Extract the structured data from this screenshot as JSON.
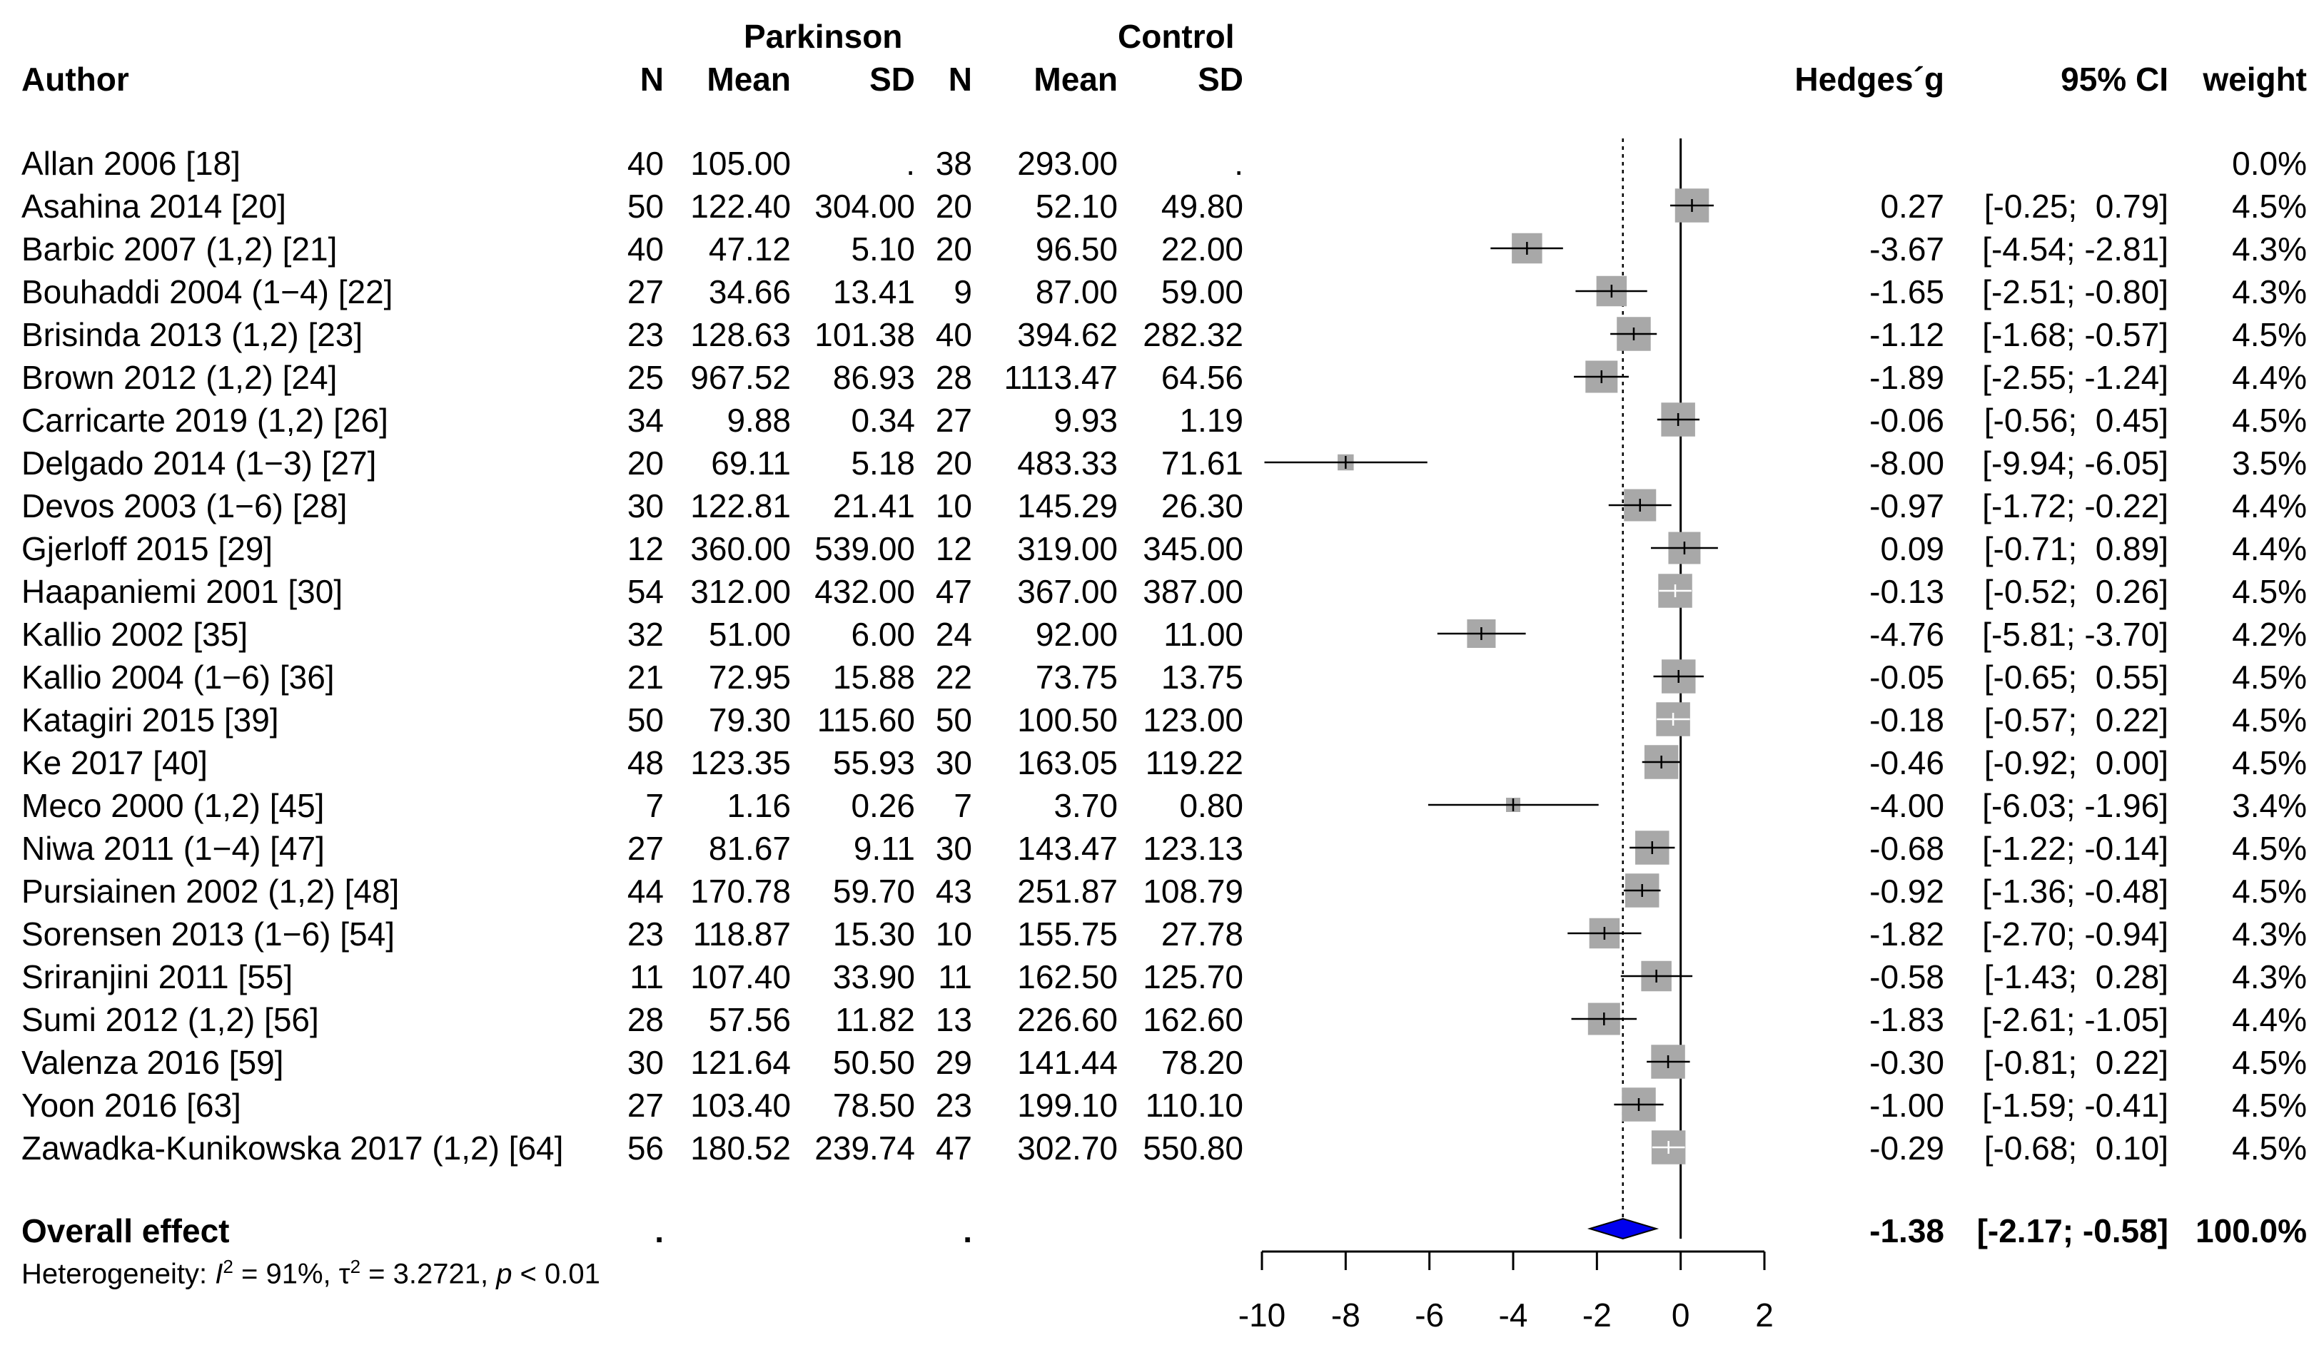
{
  "header": {
    "group1": "Parkinson",
    "group2": "Control",
    "author": "Author",
    "n1": "N",
    "mean1": "Mean",
    "sd1": "SD",
    "n2": "N",
    "mean2": "Mean",
    "sd2": "SD",
    "effect": "Hedges´g",
    "ci": "95% CI",
    "weight": "weight"
  },
  "overall": {
    "label": "Overall effect",
    "n1": ".",
    "n2": ".",
    "g": "-1.38",
    "ci": "[-2.17; -0.58]",
    "weight": "100.0%",
    "heterogeneity_prefix": "Heterogeneity: ",
    "i2_symbol": "I",
    "sup2": "2",
    "i2_value": " = 91%, ",
    "tau_symbol": "τ",
    "tau_value": " = 3.2721, ",
    "p_symbol": "p",
    "p_value": " < 0.01"
  },
  "chart_data": {
    "type": "forest",
    "xlim": [
      -10,
      2
    ],
    "ticks": [
      -10,
      -8,
      -6,
      -4,
      -2,
      0,
      2
    ],
    "tick_labels": [
      "-10",
      "-8",
      "-6",
      "-4",
      "-2",
      "0",
      "2"
    ],
    "reference_line": 0,
    "overall_estimate": -1.38,
    "overall_ci": [
      -2.17,
      -0.58
    ],
    "colors": {
      "square": "#a8a8a8",
      "diamond": "#0000ee",
      "line": "#000000",
      "light_tick": "#ffffff"
    },
    "studies": [
      {
        "author": "Allan 2006 [18]",
        "n1": "40",
        "mean1": "105.00",
        "sd1": ".",
        "n2": "38",
        "mean2": "293.00",
        "sd2": ".",
        "g_text": "",
        "ci_text": "",
        "weight_text": "0.0%",
        "g": null,
        "lo": null,
        "hi": null,
        "w": 0.0
      },
      {
        "author": "Asahina 2014 [20]",
        "n1": "50",
        "mean1": "122.40",
        "sd1": "304.00",
        "n2": "20",
        "mean2": "52.10",
        "sd2": "49.80",
        "g_text": "0.27",
        "ci_text": "[-0.25;  0.79]",
        "weight_text": "4.5%",
        "g": 0.27,
        "lo": -0.25,
        "hi": 0.79,
        "w": 4.5
      },
      {
        "author": "Barbic 2007 (1,2) [21]",
        "n1": "40",
        "mean1": "47.12",
        "sd1": "5.10",
        "n2": "20",
        "mean2": "96.50",
        "sd2": "22.00",
        "g_text": "-3.67",
        "ci_text": "[-4.54; -2.81]",
        "weight_text": "4.3%",
        "g": -3.67,
        "lo": -4.54,
        "hi": -2.81,
        "w": 4.3
      },
      {
        "author": "Bouhaddi 2004 (1−4) [22]",
        "n1": "27",
        "mean1": "34.66",
        "sd1": "13.41",
        "n2": "9",
        "mean2": "87.00",
        "sd2": "59.00",
        "g_text": "-1.65",
        "ci_text": "[-2.51; -0.80]",
        "weight_text": "4.3%",
        "g": -1.65,
        "lo": -2.51,
        "hi": -0.8,
        "w": 4.3
      },
      {
        "author": "Brisinda 2013 (1,2) [23]",
        "n1": "23",
        "mean1": "128.63",
        "sd1": "101.38",
        "n2": "40",
        "mean2": "394.62",
        "sd2": "282.32",
        "g_text": "-1.12",
        "ci_text": "[-1.68; -0.57]",
        "weight_text": "4.5%",
        "g": -1.12,
        "lo": -1.68,
        "hi": -0.57,
        "w": 4.5
      },
      {
        "author": "Brown 2012 (1,2) [24]",
        "n1": "25",
        "mean1": "967.52",
        "sd1": "86.93",
        "n2": "28",
        "mean2": "1113.47",
        "sd2": "64.56",
        "g_text": "-1.89",
        "ci_text": "[-2.55; -1.24]",
        "weight_text": "4.4%",
        "g": -1.89,
        "lo": -2.55,
        "hi": -1.24,
        "w": 4.4
      },
      {
        "author": "Carricarte 2019 (1,2) [26]",
        "n1": "34",
        "mean1": "9.88",
        "sd1": "0.34",
        "n2": "27",
        "mean2": "9.93",
        "sd2": "1.19",
        "g_text": "-0.06",
        "ci_text": "[-0.56;  0.45]",
        "weight_text": "4.5%",
        "g": -0.06,
        "lo": -0.56,
        "hi": 0.45,
        "w": 4.5
      },
      {
        "author": "Delgado 2014 (1−3) [27]",
        "n1": "20",
        "mean1": "69.11",
        "sd1": "5.18",
        "n2": "20",
        "mean2": "483.33",
        "sd2": "71.61",
        "g_text": "-8.00",
        "ci_text": "[-9.94; -6.05]",
        "weight_text": "3.5%",
        "g": -8.0,
        "lo": -9.94,
        "hi": -6.05,
        "w": 3.5
      },
      {
        "author": "Devos 2003 (1−6) [28]",
        "n1": "30",
        "mean1": "122.81",
        "sd1": "21.41",
        "n2": "10",
        "mean2": "145.29",
        "sd2": "26.30",
        "g_text": "-0.97",
        "ci_text": "[-1.72; -0.22]",
        "weight_text": "4.4%",
        "g": -0.97,
        "lo": -1.72,
        "hi": -0.22,
        "w": 4.4
      },
      {
        "author": "Gjerloff 2015 [29]",
        "n1": "12",
        "mean1": "360.00",
        "sd1": "539.00",
        "n2": "12",
        "mean2": "319.00",
        "sd2": "345.00",
        "g_text": "0.09",
        "ci_text": "[-0.71;  0.89]",
        "weight_text": "4.4%",
        "g": 0.09,
        "lo": -0.71,
        "hi": 0.89,
        "w": 4.4
      },
      {
        "author": "Haapaniemi 2001 [30]",
        "n1": "54",
        "mean1": "312.00",
        "sd1": "432.00",
        "n2": "47",
        "mean2": "367.00",
        "sd2": "387.00",
        "g_text": "-0.13",
        "ci_text": "[-0.52;  0.26]",
        "weight_text": "4.5%",
        "g": -0.13,
        "lo": -0.52,
        "hi": 0.26,
        "w": 4.5
      },
      {
        "author": "Kallio 2002 [35]",
        "n1": "32",
        "mean1": "51.00",
        "sd1": "6.00",
        "n2": "24",
        "mean2": "92.00",
        "sd2": "11.00",
        "g_text": "-4.76",
        "ci_text": "[-5.81; -3.70]",
        "weight_text": "4.2%",
        "g": -4.76,
        "lo": -5.81,
        "hi": -3.7,
        "w": 4.2
      },
      {
        "author": "Kallio 2004 (1−6) [36]",
        "n1": "21",
        "mean1": "72.95",
        "sd1": "15.88",
        "n2": "22",
        "mean2": "73.75",
        "sd2": "13.75",
        "g_text": "-0.05",
        "ci_text": "[-0.65;  0.55]",
        "weight_text": "4.5%",
        "g": -0.05,
        "lo": -0.65,
        "hi": 0.55,
        "w": 4.5
      },
      {
        "author": "Katagiri 2015 [39]",
        "n1": "50",
        "mean1": "79.30",
        "sd1": "115.60",
        "n2": "50",
        "mean2": "100.50",
        "sd2": "123.00",
        "g_text": "-0.18",
        "ci_text": "[-0.57;  0.22]",
        "weight_text": "4.5%",
        "g": -0.18,
        "lo": -0.57,
        "hi": 0.22,
        "w": 4.5
      },
      {
        "author": "Ke 2017 [40]",
        "n1": "48",
        "mean1": "123.35",
        "sd1": "55.93",
        "n2": "30",
        "mean2": "163.05",
        "sd2": "119.22",
        "g_text": "-0.46",
        "ci_text": "[-0.92;  0.00]",
        "weight_text": "4.5%",
        "g": -0.46,
        "lo": -0.92,
        "hi": 0.0,
        "w": 4.5
      },
      {
        "author": "Meco 2000 (1,2) [45]",
        "n1": "7",
        "mean1": "1.16",
        "sd1": "0.26",
        "n2": "7",
        "mean2": "3.70",
        "sd2": "0.80",
        "g_text": "-4.00",
        "ci_text": "[-6.03; -1.96]",
        "weight_text": "3.4%",
        "g": -4.0,
        "lo": -6.03,
        "hi": -1.96,
        "w": 3.4
      },
      {
        "author": "Niwa 2011 (1−4) [47]",
        "n1": "27",
        "mean1": "81.67",
        "sd1": "9.11",
        "n2": "30",
        "mean2": "143.47",
        "sd2": "123.13",
        "g_text": "-0.68",
        "ci_text": "[-1.22; -0.14]",
        "weight_text": "4.5%",
        "g": -0.68,
        "lo": -1.22,
        "hi": -0.14,
        "w": 4.5
      },
      {
        "author": "Pursiainen 2002 (1,2) [48]",
        "n1": "44",
        "mean1": "170.78",
        "sd1": "59.70",
        "n2": "43",
        "mean2": "251.87",
        "sd2": "108.79",
        "g_text": "-0.92",
        "ci_text": "[-1.36; -0.48]",
        "weight_text": "4.5%",
        "g": -0.92,
        "lo": -1.36,
        "hi": -0.48,
        "w": 4.5
      },
      {
        "author": "Sorensen 2013 (1−6) [54]",
        "n1": "23",
        "mean1": "118.87",
        "sd1": "15.30",
        "n2": "10",
        "mean2": "155.75",
        "sd2": "27.78",
        "g_text": "-1.82",
        "ci_text": "[-2.70; -0.94]",
        "weight_text": "4.3%",
        "g": -1.82,
        "lo": -2.7,
        "hi": -0.94,
        "w": 4.3
      },
      {
        "author": "Sriranjini 2011 [55]",
        "n1": "11",
        "mean1": "107.40",
        "sd1": "33.90",
        "n2": "11",
        "mean2": "162.50",
        "sd2": "125.70",
        "g_text": "-0.58",
        "ci_text": "[-1.43;  0.28]",
        "weight_text": "4.3%",
        "g": -0.58,
        "lo": -1.43,
        "hi": 0.28,
        "w": 4.3
      },
      {
        "author": "Sumi 2012 (1,2) [56]",
        "n1": "28",
        "mean1": "57.56",
        "sd1": "11.82",
        "n2": "13",
        "mean2": "226.60",
        "sd2": "162.60",
        "g_text": "-1.83",
        "ci_text": "[-2.61; -1.05]",
        "weight_text": "4.4%",
        "g": -1.83,
        "lo": -2.61,
        "hi": -1.05,
        "w": 4.4
      },
      {
        "author": "Valenza 2016 [59]",
        "n1": "30",
        "mean1": "121.64",
        "sd1": "50.50",
        "n2": "29",
        "mean2": "141.44",
        "sd2": "78.20",
        "g_text": "-0.30",
        "ci_text": "[-0.81;  0.22]",
        "weight_text": "4.5%",
        "g": -0.3,
        "lo": -0.81,
        "hi": 0.22,
        "w": 4.5
      },
      {
        "author": "Yoon 2016 [63]",
        "n1": "27",
        "mean1": "103.40",
        "sd1": "78.50",
        "n2": "23",
        "mean2": "199.10",
        "sd2": "110.10",
        "g_text": "-1.00",
        "ci_text": "[-1.59; -0.41]",
        "weight_text": "4.5%",
        "g": -1.0,
        "lo": -1.59,
        "hi": -0.41,
        "w": 4.5
      },
      {
        "author": "Zawadka-Kunikowska 2017 (1,2) [64]",
        "n1": "56",
        "mean1": "180.52",
        "sd1": "239.74",
        "n2": "47",
        "mean2": "302.70",
        "sd2": "550.80",
        "g_text": "-0.29",
        "ci_text": "[-0.68;  0.10]",
        "weight_text": "4.5%",
        "g": -0.29,
        "lo": -0.68,
        "hi": 0.1,
        "w": 4.5
      }
    ]
  }
}
